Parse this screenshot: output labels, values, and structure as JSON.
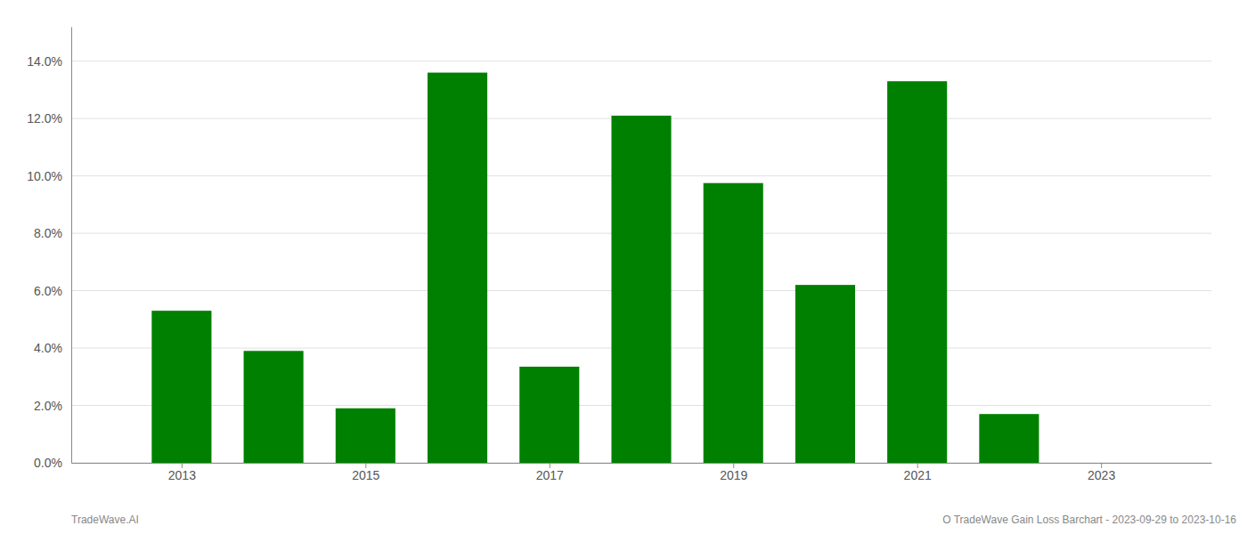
{
  "chart_data": {
    "type": "bar",
    "x": [
      2013,
      2014,
      2015,
      2016,
      2017,
      2018,
      2019,
      2020,
      2021,
      2022,
      2023
    ],
    "values": [
      0.053,
      0.039,
      0.019,
      0.136,
      0.0335,
      0.121,
      0.0975,
      0.062,
      0.133,
      0.017,
      0.0
    ],
    "color": "#008000",
    "xlim": [
      2011.8,
      2024.2
    ],
    "xticks": [
      2013,
      2015,
      2017,
      2019,
      2021,
      2023
    ],
    "ylim": [
      0,
      0.152
    ],
    "yticks": [
      {
        "value": 0.0,
        "label": "0.0%"
      },
      {
        "value": 0.02,
        "label": "2.0%"
      },
      {
        "value": 0.04,
        "label": "4.0%"
      },
      {
        "value": 0.06,
        "label": "6.0%"
      },
      {
        "value": 0.08,
        "label": "8.0%"
      },
      {
        "value": 0.1,
        "label": "10.0%"
      },
      {
        "value": 0.12,
        "label": "12.0%"
      },
      {
        "value": 0.14,
        "label": "14.0%"
      }
    ],
    "grid": true,
    "annotations": [
      "TradeWave.AI",
      "O TradeWave Gain Loss Barchart - 2023-09-29 to 2023-10-16"
    ]
  }
}
